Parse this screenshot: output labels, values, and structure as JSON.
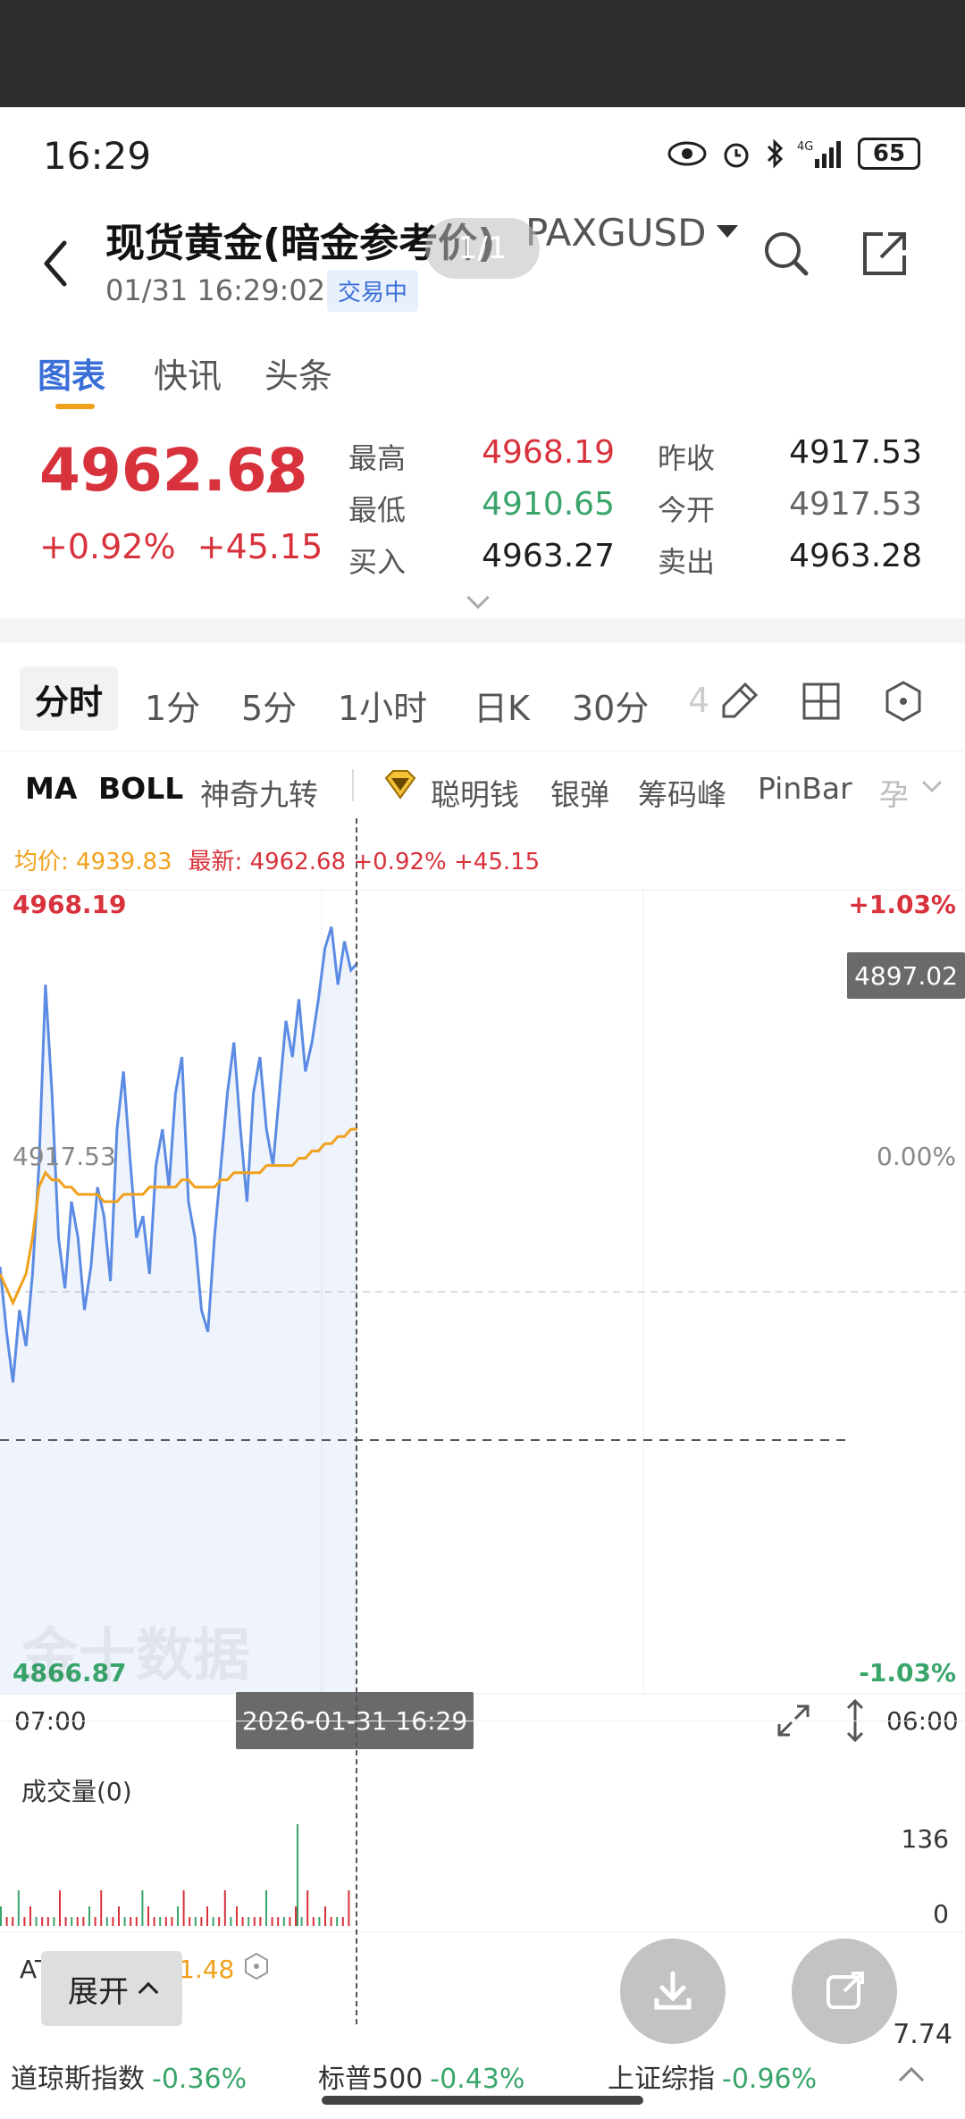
{
  "status_bar": {
    "time": "16:29",
    "network": "4G",
    "battery": "65"
  },
  "header": {
    "title": "现货黄金(暗金参考价)",
    "symbol": "PAXGUSD",
    "datetime": "01/31 16:29:02",
    "status_badge": "交易中",
    "page_indicator": "1/1"
  },
  "tabs": [
    {
      "label": "图表",
      "active": true
    },
    {
      "label": "快讯"
    },
    {
      "label": "头条"
    }
  ],
  "quote": {
    "price": "4962.68",
    "change_pct": "+0.92%",
    "change_abs": "+45.15",
    "high_label": "最高",
    "high": "4968.19",
    "low_label": "最低",
    "low": "4910.65",
    "bid_label": "买入",
    "bid": "4963.27",
    "prev_close_label": "昨收",
    "prev_close": "4917.53",
    "open_label": "今开",
    "open": "4917.53",
    "ask_label": "卖出",
    "ask": "4963.28"
  },
  "periods": [
    {
      "label": "分时",
      "active": true
    },
    {
      "label": "1分"
    },
    {
      "label": "5分"
    },
    {
      "label": "1小时"
    },
    {
      "label": "日K"
    },
    {
      "label": "30分"
    },
    {
      "label": "4"
    }
  ],
  "indicators": [
    {
      "label": "MA"
    },
    {
      "label": "BOLL"
    },
    {
      "label": "神奇九转"
    },
    {
      "label": "聪明钱"
    },
    {
      "label": "银弹"
    },
    {
      "label": "筹码峰"
    },
    {
      "label": "PinBar"
    },
    {
      "label": "孕"
    }
  ],
  "chart_legend": {
    "avg": "均价: 4939.83",
    "last": "最新: 4962.68 +0.92% +45.15"
  },
  "chart_axes": {
    "y_top": "4968.19",
    "y_top_pct": "+1.03%",
    "y_mid": "4917.53",
    "y_mid_pct": "0.00%",
    "y_bottom": "4866.87",
    "y_bottom_pct": "-1.03%",
    "crosshair_price": "4897.02",
    "x_start": "07:00",
    "x_end": "06:00",
    "crosshair_time": "2026-01-31 16:29"
  },
  "watermark": "金十数据",
  "volume": {
    "title": "成交量(0)",
    "max": "136",
    "min": "0"
  },
  "atr": {
    "label": "AT",
    "value": "1.48",
    "right_value": "7.74"
  },
  "expand_button": "展开",
  "ticker": [
    {
      "name": "道琼斯指数",
      "pct": "-0.36%"
    },
    {
      "name": "标普500",
      "pct": "-0.43%"
    },
    {
      "name": "上证综指",
      "pct": "-0.96%"
    }
  ],
  "colors": {
    "up": "#d8323c",
    "down": "#3aa56b",
    "accent": "#3b6fd8",
    "avg_line": "#f0a11c",
    "price_line": "#5b8be3"
  },
  "chart_data": {
    "type": "line",
    "ylim": [
      4866.87,
      4968.19
    ],
    "x_range": [
      "07:00",
      "06:00"
    ],
    "series": [
      {
        "values": [
          4921,
          4912,
          4905,
          4915,
          4910,
          4920,
          4935,
          4960,
          4945,
          4925,
          4918,
          4930,
          4925,
          4915,
          4921,
          4932,
          4928,
          4919,
          4940,
          4948,
          4936,
          4925,
          4928,
          4920,
          4935,
          4940,
          4932,
          4945,
          4950,
          4930,
          4925,
          4915,
          4912,
          4925,
          4935,
          4945,
          4952,
          4940,
          4930,
          4945,
          4950,
          4940,
          4935,
          4945,
          4955,
          4950,
          4958,
          4948,
          4952,
          4958,
          4965,
          4968,
          4960,
          4966,
          4962,
          4963
        ]
      },
      {
        "values": [
          4920,
          4918,
          4916,
          4918,
          4920,
          4925,
          4932,
          4934,
          4933,
          4933,
          4932,
          4932,
          4931,
          4931,
          4931,
          4931,
          4930,
          4930,
          4930,
          4931,
          4931,
          4931,
          4931,
          4932,
          4932,
          4932,
          4932,
          4932,
          4933,
          4933,
          4932,
          4932,
          4932,
          4932,
          4933,
          4933,
          4934,
          4934,
          4934,
          4934,
          4934,
          4935,
          4935,
          4935,
          4935,
          4935,
          4936,
          4936,
          4937,
          4937,
          4938,
          4938,
          4939,
          4939,
          4940,
          4940
        ]
      }
    ]
  }
}
